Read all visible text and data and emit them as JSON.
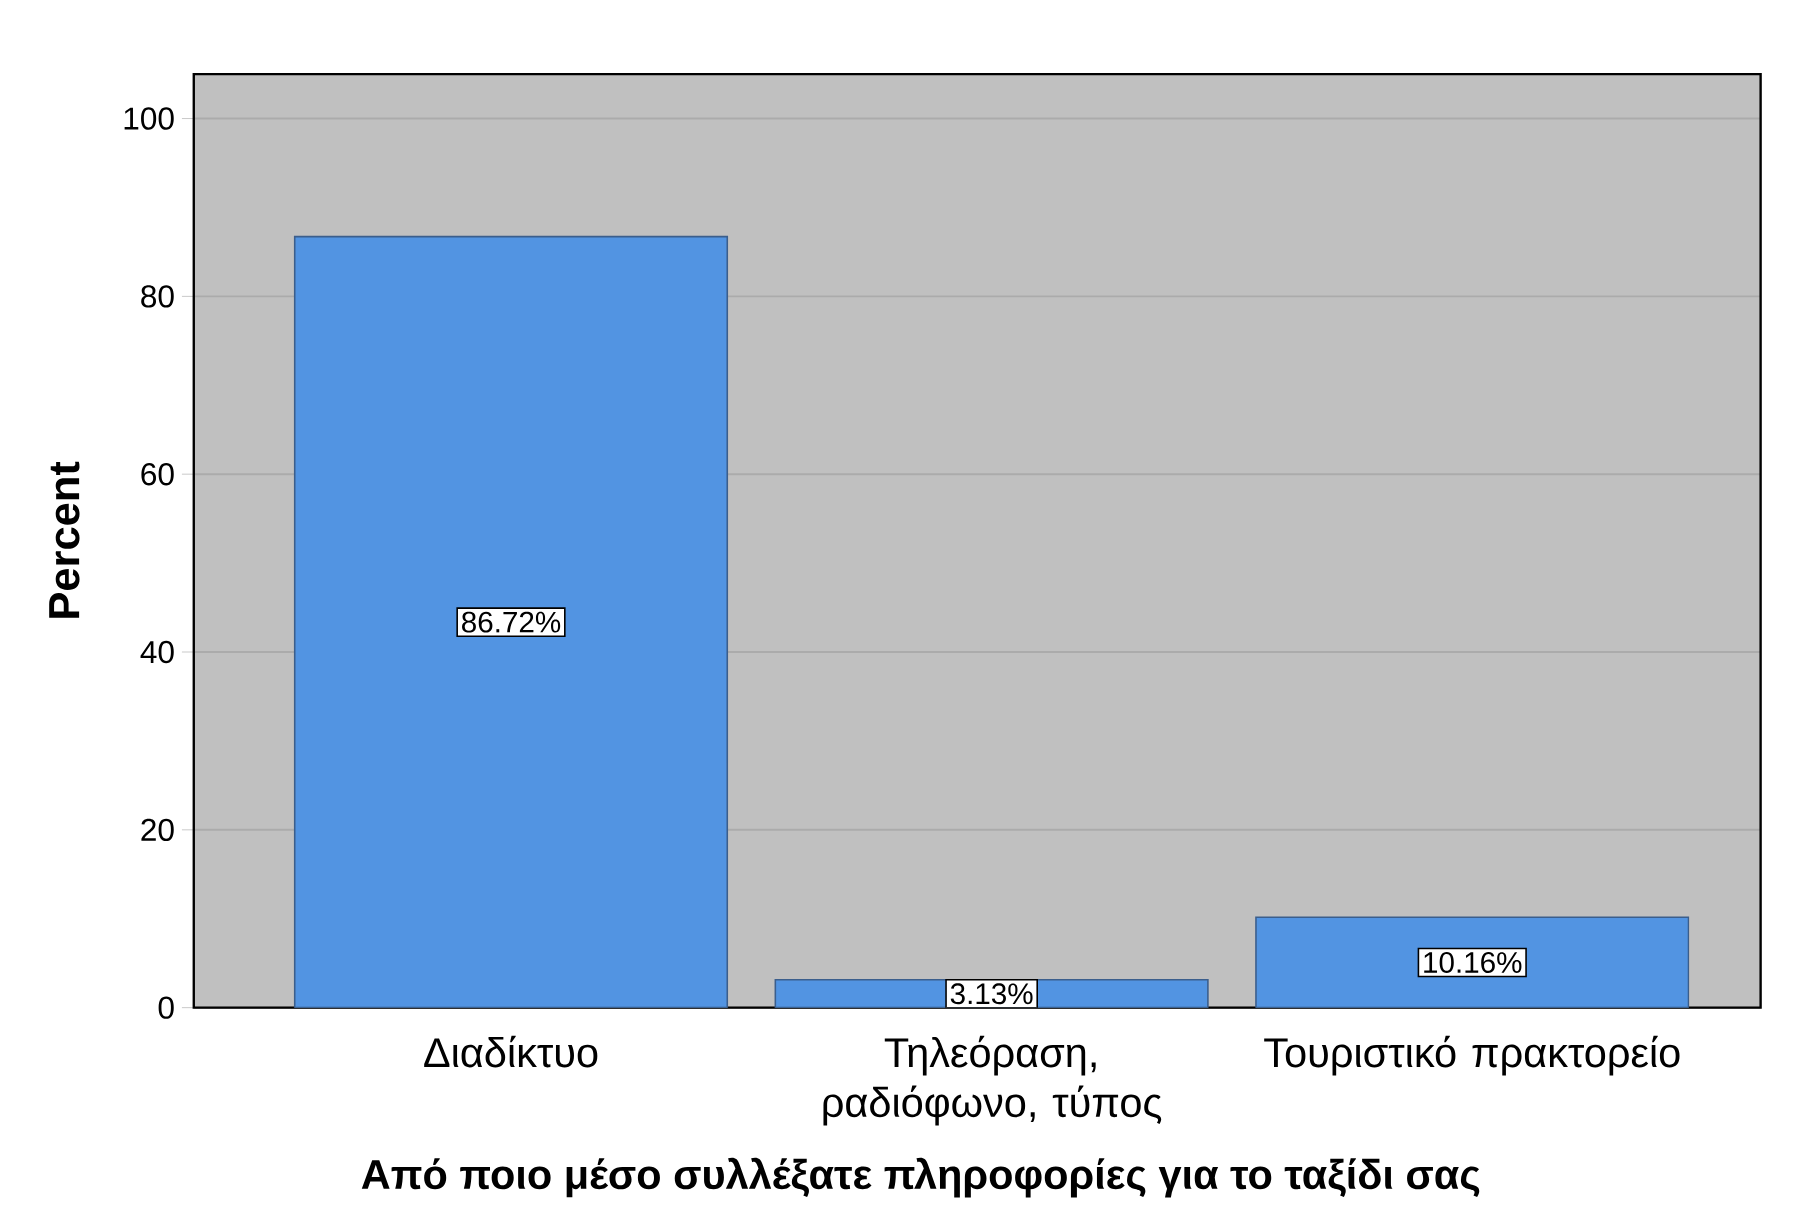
{
  "chart_data": {
    "type": "bar",
    "xlabel": "Από ποιο μέσο συλλέξατε πληροφορίες για το ταξίδι σας",
    "ylabel": "Percent",
    "categories": [
      "Διαδίκτυο",
      "Τηλεόραση, ραδιόφωνο, τύπος",
      "Τουριστικό πρακτορείο"
    ],
    "values": [
      86.72,
      3.13,
      10.16
    ],
    "value_labels": [
      "86.72%",
      "3.13%",
      "10.16%"
    ],
    "color": "#5294e2",
    "ylim": [
      0,
      105
    ],
    "yticks": [
      0,
      20,
      40,
      60,
      80,
      100
    ],
    "grid": "y"
  }
}
